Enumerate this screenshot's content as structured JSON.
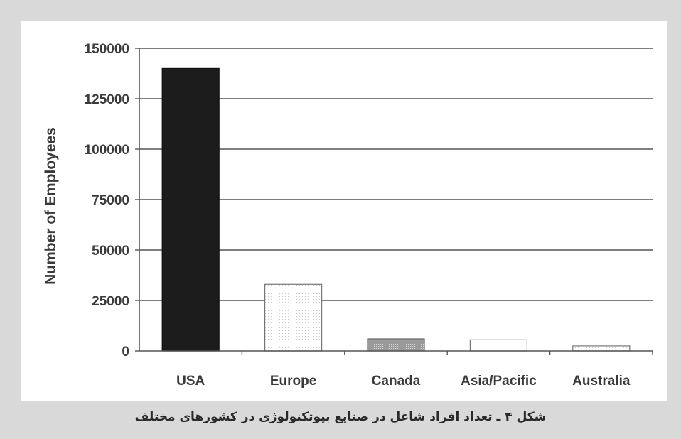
{
  "caption": "شکل ۴ ـ تعداد افراد شاغل در صنایع بیوتکنولوژی در کشورهای مختلف",
  "chart_data": {
    "type": "bar",
    "title": "",
    "xlabel": "",
    "ylabel": "Number of Employees",
    "ylim": [
      0,
      150000
    ],
    "yticks": [
      0,
      25000,
      50000,
      75000,
      100000,
      125000,
      150000
    ],
    "categories": [
      "USA",
      "Europe",
      "Canada",
      "Asia/Pacific",
      "Australia"
    ],
    "values": [
      140000,
      33000,
      6000,
      5500,
      2500
    ],
    "grid": true,
    "bar_styles": [
      "solid-black",
      "light-dotted",
      "gray-dotted",
      "white",
      "light-dotted"
    ]
  }
}
